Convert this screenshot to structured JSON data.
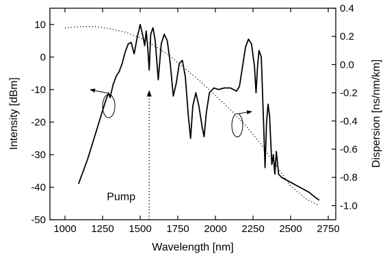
{
  "chart_data": {
    "type": "line",
    "xlabel": "Wavelength [nm]",
    "ylabel_left": "Intensity [dBm]",
    "ylabel_right": "Dispersion [ns/nm/km]",
    "xlim": [
      900,
      2800
    ],
    "ylim_left": [
      -50,
      15
    ],
    "ylim_right": [
      -1.1,
      0.4
    ],
    "x_ticks": [
      1000,
      1250,
      1500,
      1750,
      2000,
      2250,
      2500,
      2750
    ],
    "y_ticks_left": [
      10,
      0,
      -10,
      -20,
      -30,
      -40,
      -50
    ],
    "y_ticks_right": [
      "0.4",
      "0.2",
      "0.0",
      "-0.2",
      "-0.4",
      "-0.6",
      "-0.8",
      "-1.0"
    ],
    "grid": false,
    "annotations": [
      {
        "text": "Pump",
        "x": 1560,
        "y_left": -43
      }
    ],
    "series": [
      {
        "axis": "left",
        "style": "solid",
        "points": [
          [
            1090,
            -39.0
          ],
          [
            1110,
            -36.5
          ],
          [
            1130,
            -34.0
          ],
          [
            1150,
            -31.5
          ],
          [
            1170,
            -28.5
          ],
          [
            1190,
            -25.5
          ],
          [
            1210,
            -22.5
          ],
          [
            1230,
            -19.5
          ],
          [
            1250,
            -16.5
          ],
          [
            1270,
            -13.5
          ],
          [
            1290,
            -11.0
          ],
          [
            1300,
            -12.5
          ],
          [
            1320,
            -8.5
          ],
          [
            1340,
            -6.0
          ],
          [
            1360,
            -4.5
          ],
          [
            1380,
            -2.0
          ],
          [
            1400,
            1.5
          ],
          [
            1420,
            4.0
          ],
          [
            1440,
            4.5
          ],
          [
            1460,
            1.0
          ],
          [
            1480,
            6.0
          ],
          [
            1500,
            10.0
          ],
          [
            1520,
            6.0
          ],
          [
            1530,
            3.5
          ],
          [
            1540,
            8.0
          ],
          [
            1550,
            3.0
          ],
          [
            1560,
            -4.0
          ],
          [
            1570,
            7.0
          ],
          [
            1585,
            9.0
          ],
          [
            1600,
            5.0
          ],
          [
            1620,
            -7.0
          ],
          [
            1640,
            4.0
          ],
          [
            1660,
            7.0
          ],
          [
            1680,
            5.0
          ],
          [
            1700,
            -2.0
          ],
          [
            1720,
            -12.0
          ],
          [
            1740,
            -8.0
          ],
          [
            1760,
            -2.0
          ],
          [
            1780,
            -1.0
          ],
          [
            1800,
            -6.0
          ],
          [
            1820,
            -18.0
          ],
          [
            1835,
            -25.0
          ],
          [
            1850,
            -15.0
          ],
          [
            1870,
            -11.0
          ],
          [
            1890,
            -15.0
          ],
          [
            1910,
            -21.0
          ],
          [
            1925,
            -24.5
          ],
          [
            1940,
            -17.0
          ],
          [
            1960,
            -11.0
          ],
          [
            1990,
            -9.5
          ],
          [
            2020,
            -10.0
          ],
          [
            2060,
            -9.5
          ],
          [
            2100,
            -9.5
          ],
          [
            2140,
            -10.5
          ],
          [
            2160,
            -9.0
          ],
          [
            2180,
            -3.0
          ],
          [
            2200,
            3.0
          ],
          [
            2220,
            5.5
          ],
          [
            2240,
            4.0
          ],
          [
            2260,
            -3.0
          ],
          [
            2270,
            -11.0
          ],
          [
            2280,
            -3.0
          ],
          [
            2290,
            2.0
          ],
          [
            2305,
            0.0
          ],
          [
            2320,
            -20.0
          ],
          [
            2330,
            -34.0
          ],
          [
            2340,
            -20.0
          ],
          [
            2350,
            -14.5
          ],
          [
            2360,
            -18.0
          ],
          [
            2375,
            -33.0
          ],
          [
            2385,
            -30.0
          ],
          [
            2395,
            -36.0
          ],
          [
            2405,
            -29.0
          ],
          [
            2420,
            -36.0
          ],
          [
            2440,
            -37.0
          ],
          [
            2500,
            -38.5
          ],
          [
            2560,
            -40.0
          ],
          [
            2620,
            -41.5
          ],
          [
            2660,
            -43.0
          ],
          [
            2690,
            -44.0
          ]
        ]
      },
      {
        "axis": "right",
        "style": "dotted",
        "points": [
          [
            1000,
            0.26
          ],
          [
            1100,
            0.27
          ],
          [
            1200,
            0.27
          ],
          [
            1300,
            0.255
          ],
          [
            1400,
            0.23
          ],
          [
            1500,
            0.19
          ],
          [
            1600,
            0.13
          ],
          [
            1700,
            0.06
          ],
          [
            1800,
            -0.03
          ],
          [
            1900,
            -0.12
          ],
          [
            2000,
            -0.22
          ],
          [
            2100,
            -0.32
          ],
          [
            2200,
            -0.43
          ],
          [
            2300,
            -0.56
          ],
          [
            2400,
            -0.71
          ],
          [
            2500,
            -0.86
          ],
          [
            2600,
            -0.95
          ],
          [
            2690,
            -1.0
          ]
        ]
      }
    ]
  }
}
